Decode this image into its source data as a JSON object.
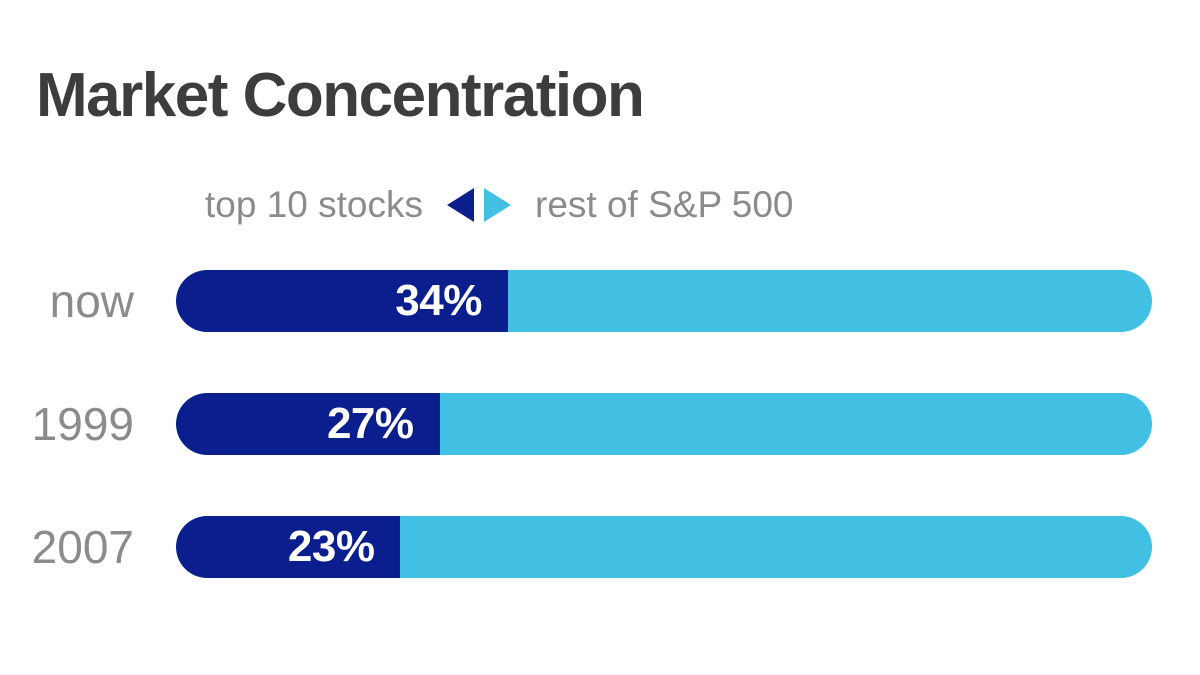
{
  "title": "Market Concentration",
  "legend": {
    "left_label": "top 10 stocks",
    "right_label": "rest of S&P 500"
  },
  "colors": {
    "top10_navy": "#0b1e8e",
    "rest_sky": "#41c0e3",
    "title_text": "#3d3d3d",
    "label_gray": "#8b8b8b",
    "value_text": "#ffffff",
    "background": "#ffffff"
  },
  "bars": [
    {
      "label": "now",
      "pct": 34,
      "pct_label": "34%"
    },
    {
      "label": "1999",
      "pct": 27,
      "pct_label": "27%"
    },
    {
      "label": "2007",
      "pct": 23,
      "pct_label": "23%"
    }
  ],
  "chart_data": {
    "type": "bar",
    "orientation": "horizontal",
    "stacked": true,
    "title": "Market Concentration",
    "categories": [
      "now",
      "1999",
      "2007"
    ],
    "series": [
      {
        "name": "top 10 stocks",
        "values": [
          34,
          27,
          23
        ],
        "color": "#0b1e8e"
      },
      {
        "name": "rest of S&P 500",
        "values": [
          66,
          73,
          77
        ],
        "color": "#41c0e3"
      }
    ],
    "value_labels": [
      "34%",
      "27%",
      "23%"
    ],
    "xlim": [
      0,
      100
    ],
    "xlabel": "",
    "ylabel": "",
    "grid": false,
    "legend_position": "top"
  }
}
